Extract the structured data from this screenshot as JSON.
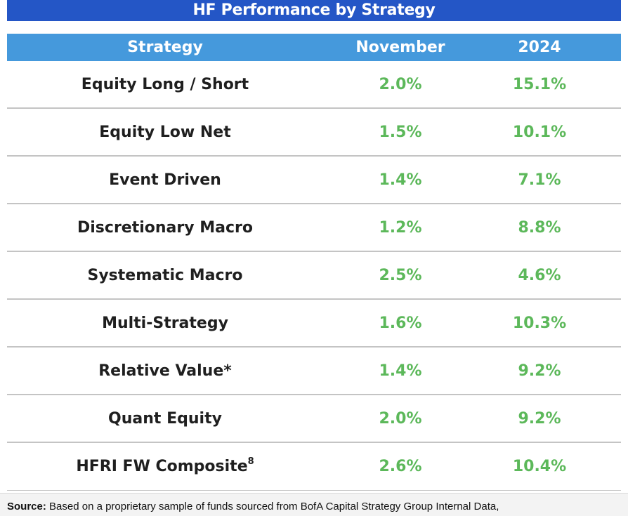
{
  "table": {
    "title": "HF Performance by Strategy",
    "columns": [
      "Strategy",
      "November",
      "2024"
    ],
    "rows": [
      {
        "strategy": "Equity Long / Short",
        "november": "2.0%",
        "ytd": "15.1%"
      },
      {
        "strategy": "Equity Low Net",
        "november": "1.5%",
        "ytd": "10.1%"
      },
      {
        "strategy": "Event Driven",
        "november": "1.4%",
        "ytd": "7.1%"
      },
      {
        "strategy": "Discretionary Macro",
        "november": "1.2%",
        "ytd": "8.8%"
      },
      {
        "strategy": "Systematic Macro",
        "november": "2.5%",
        "ytd": "4.6%"
      },
      {
        "strategy": "Multi-Strategy",
        "november": "1.6%",
        "ytd": "10.3%"
      },
      {
        "strategy": "Relative Value*",
        "november": "1.4%",
        "ytd": "9.2%"
      },
      {
        "strategy": "Quant Equity",
        "november": "2.0%",
        "ytd": "9.2%"
      },
      {
        "strategy": "HFRI FW Composite",
        "strategy_sup": "8",
        "november": "2.6%",
        "ytd": "10.4%"
      }
    ]
  },
  "source": {
    "label": "Source:",
    "text": " Based on a proprietary sample of funds sourced from BofA Capital Strategy Group Internal Data,"
  },
  "colors": {
    "title_bg": "#2456c6",
    "header_bg": "#4599dc",
    "value_green": "#5cb85a",
    "divider": "#c4c4c4"
  }
}
